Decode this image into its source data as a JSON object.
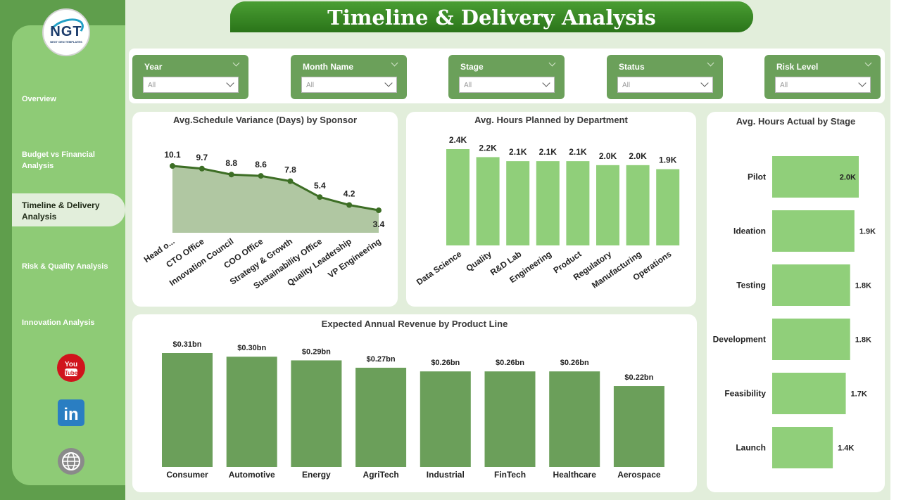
{
  "title": "Timeline & Delivery  Analysis",
  "logo": {
    "text": "NGT",
    "subtitle": "NEXT GEN TEMPLATES"
  },
  "nav": [
    {
      "label": "Overview",
      "active": false
    },
    {
      "label": "Budget vs Financial Analysis",
      "active": false
    },
    {
      "label": "Timeline & Delivery Analysis",
      "active": true
    },
    {
      "label": "Risk & Quality Analysis",
      "active": false
    },
    {
      "label": "Innovation Analysis",
      "active": false
    }
  ],
  "social": [
    {
      "name": "youtube-icon",
      "text": "You Tube",
      "color": "#d0141c"
    },
    {
      "name": "linkedin-icon",
      "text": "in",
      "color": "#2a7ec2"
    },
    {
      "name": "globe-icon",
      "text": "",
      "color": "#8a8a8a"
    }
  ],
  "filters": [
    {
      "label": "Year",
      "value": "All"
    },
    {
      "label": "Month Name",
      "value": "All"
    },
    {
      "label": "Stage",
      "value": "All"
    },
    {
      "label": "Status",
      "value": "All"
    },
    {
      "label": "Risk Level",
      "value": "All"
    }
  ],
  "colors": {
    "bar_light": "#90cf7a",
    "bar_dark": "#6b9f5a",
    "line": "#3d6e25",
    "area": "#b0c7a2"
  },
  "chart_data": [
    {
      "type": "area",
      "title": "Avg.Schedule Variance (Days) by Sponsor",
      "categories": [
        "Head o...",
        "CTO Office",
        "Innovation Council",
        "COO Office",
        "Strategy & Growth",
        "Sustainability Office",
        "Quality Leadership",
        "VP Engineering"
      ],
      "values": [
        10.1,
        9.7,
        8.8,
        8.6,
        7.8,
        5.4,
        4.2,
        3.4
      ],
      "labels": [
        "10.1",
        "9.7",
        "8.8",
        "8.6",
        "7.8",
        "5.4",
        "4.2",
        "3.4"
      ],
      "ylim": [
        0,
        11
      ]
    },
    {
      "type": "bar",
      "title": "Avg. Hours Planned by Department",
      "categories": [
        "Data Science",
        "Quality",
        "R&D Lab",
        "Engineering",
        "Product",
        "Regulatory",
        "Manufacturing",
        "Operations"
      ],
      "values": [
        2400,
        2200,
        2100,
        2100,
        2100,
        2000,
        2000,
        1900
      ],
      "labels": [
        "2.4K",
        "2.2K",
        "2.1K",
        "2.1K",
        "2.1K",
        "2.0K",
        "2.0K",
        "1.9K"
      ],
      "ylim": [
        0,
        2400
      ]
    },
    {
      "type": "bar",
      "orientation": "horizontal",
      "title": "Avg. Hours Actual by Stage",
      "categories": [
        "Pilot",
        "Ideation",
        "Testing",
        "Development",
        "Feasibility",
        "Launch"
      ],
      "values": [
        2000,
        1900,
        1800,
        1800,
        1700,
        1400
      ],
      "labels": [
        "2.0K",
        "1.9K",
        "1.8K",
        "1.8K",
        "1.7K",
        "1.4K"
      ],
      "xlim": [
        0,
        2000
      ]
    },
    {
      "type": "bar",
      "title": "Expected Annual Revenue by Product Line",
      "categories": [
        "Consumer",
        "Automotive",
        "Energy",
        "AgriTech",
        "Industrial",
        "FinTech",
        "Healthcare",
        "Aerospace"
      ],
      "values": [
        0.31,
        0.3,
        0.29,
        0.27,
        0.26,
        0.26,
        0.26,
        0.22
      ],
      "labels": [
        "$0.31bn",
        "$0.30bn",
        "$0.29bn",
        "$0.27bn",
        "$0.26bn",
        "$0.26bn",
        "$0.26bn",
        "$0.22bn"
      ],
      "ylim": [
        0,
        0.31
      ]
    }
  ]
}
